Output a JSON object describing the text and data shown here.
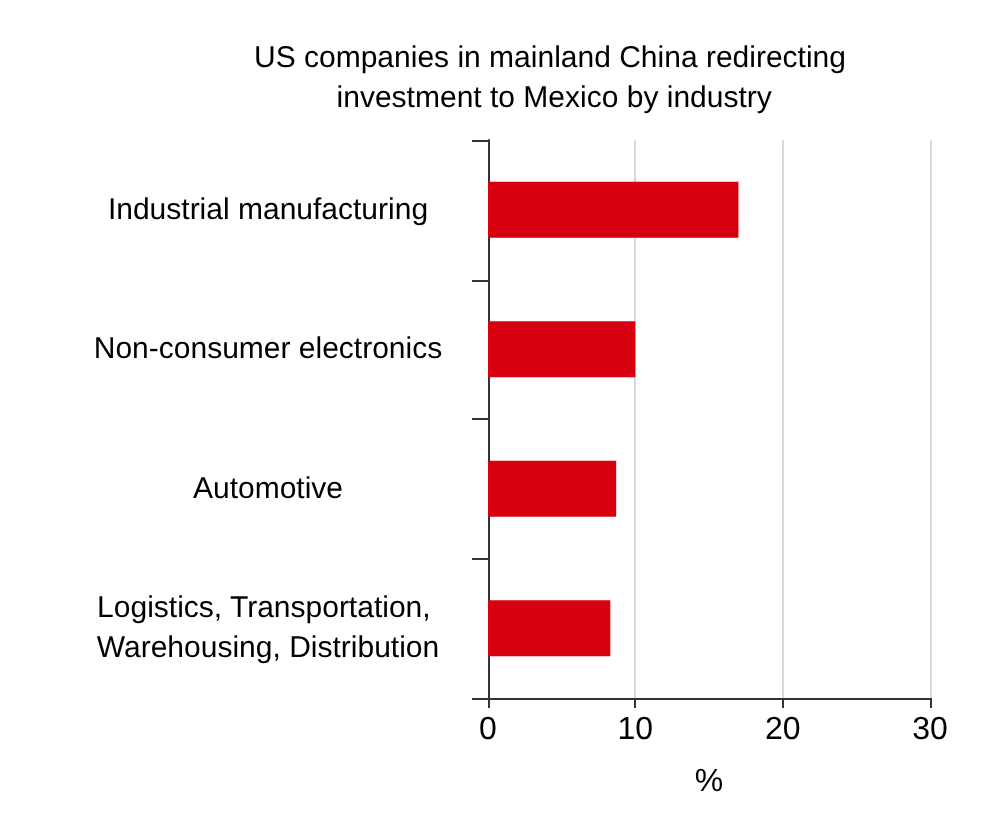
{
  "chart_data": {
    "type": "bar",
    "orientation": "horizontal",
    "title": "US companies in mainland China redirecting investment to Mexico by industry",
    "xlabel": "%",
    "categories": [
      "Industrial manufacturing",
      "Non-consumer electronics",
      "Automotive",
      "Logistics, Transportation, Warehousing, Distribution"
    ],
    "values": [
      17,
      10,
      8.7,
      8.3
    ],
    "color": "#d7000f",
    "xlim": [
      0,
      30
    ],
    "xticks": [
      0,
      10,
      20,
      30
    ],
    "grid": "x"
  }
}
